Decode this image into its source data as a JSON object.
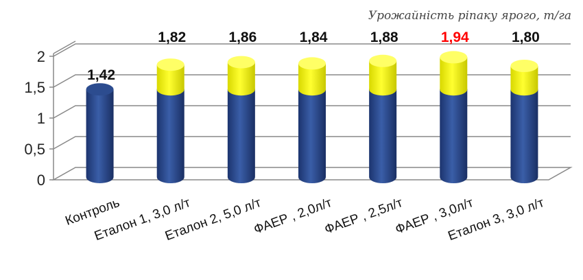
{
  "chart_data": {
    "type": "bar",
    "title": "Урожайність ріпаку ярого, т/га",
    "xlabel": "",
    "ylabel": "",
    "ylim": [
      0,
      2
    ],
    "yticks": [
      "0",
      "0,5",
      "1",
      "1,5",
      "2"
    ],
    "grid": true,
    "categories": [
      "Контроль",
      "Еталон 1, 3,0 л/т",
      "Еталон 2, 5,0 л/т",
      "ФАЕР , 2,0л/т",
      "ФАЕР , 2,5л/т",
      "ФАЕР , 3,0л/т",
      "Еталон 3, 3,0 л/т"
    ],
    "series": [
      {
        "values": [
          1.42,
          1.42,
          1.42,
          1.42,
          1.42,
          1.42,
          1.42
        ],
        "color": "#2b4a8c"
      },
      {
        "values": [
          0,
          0.4,
          0.44,
          0.42,
          0.46,
          0.52,
          0.38
        ],
        "color": "#ffff00"
      }
    ],
    "totals": [
      1.42,
      1.82,
      1.86,
      1.84,
      1.88,
      1.94,
      1.8
    ],
    "data_labels": [
      "1,42",
      "1,82",
      "1,86",
      "1,84",
      "1,88",
      "1,94",
      "1,80"
    ],
    "highlight_index": 5,
    "highlight_color": "#ff0000"
  }
}
